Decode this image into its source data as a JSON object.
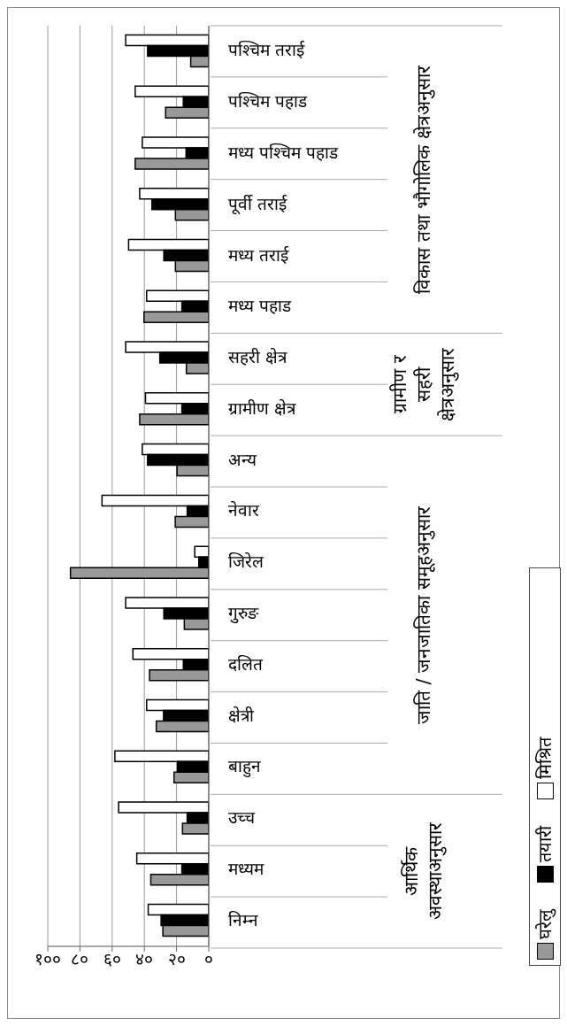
{
  "chart_data": {
    "type": "bar",
    "orientation": "horizontal",
    "categories": [
      "पश्चिम तराई",
      "पश्चिम पहाड",
      "मध्य पश्चिम पहाड",
      "पूर्वी तराई",
      "मध्य तराई",
      "मध्य पहाड",
      "सहरी क्षेत्र",
      "ग्रामीण क्षेत्र",
      "अन्य",
      "नेवार",
      "जिरेल",
      "गुरुङ",
      "दलित",
      "क्षेत्री",
      "बाहुन",
      "उच्च",
      "मध्यम",
      "निम्न"
    ],
    "series": [
      {
        "name": "घरेलु",
        "color": "#999999",
        "values": [
          11.2,
          26.8,
          45.7,
          20.7,
          20.7,
          40.2,
          13.9,
          42.9,
          19.7,
          20.8,
          85.9,
          15.2,
          36.8,
          32.6,
          21.6,
          16.3,
          36,
          28.5
        ]
      },
      {
        "name": "तयारी",
        "color": "#000000",
        "values": [
          38,
          15.8,
          14.1,
          35.3,
          27.9,
          16.7,
          30.4,
          16.7,
          38,
          13.4,
          6.2,
          27.9,
          15.8,
          28.1,
          19.4,
          13.4,
          16.7,
          29.6
        ]
      },
      {
        "name": "मिश्रित",
        "color": "#ffffff",
        "values": [
          51.6,
          45.7,
          41.3,
          42.9,
          49.8,
          38.6,
          51.6,
          39.3,
          41.3,
          66.3,
          8.7,
          51.6,
          47.1,
          38.6,
          58.3,
          56,
          44.7,
          37.6
        ]
      }
    ],
    "xlim": [
      100,
      0
    ],
    "xticks": [
      {
        "value": 100,
        "label": "१००"
      },
      {
        "value": 80,
        "label": "८०"
      },
      {
        "value": 60,
        "label": "६०"
      },
      {
        "value": 40,
        "label": "४०"
      },
      {
        "value": 20,
        "label": "२०"
      },
      {
        "value": 0,
        "label": "०"
      }
    ],
    "grid": "x",
    "legend": "right",
    "annotations": [
      "विकास तथा भौगोलिक क्षेत्रअनुसार",
      "ग्रामीण र सहरी क्षेत्रअनुसार",
      "जाति / जनजातिका समूहअनुसार",
      "आर्थिक अवस्थाअनुसार"
    ]
  }
}
